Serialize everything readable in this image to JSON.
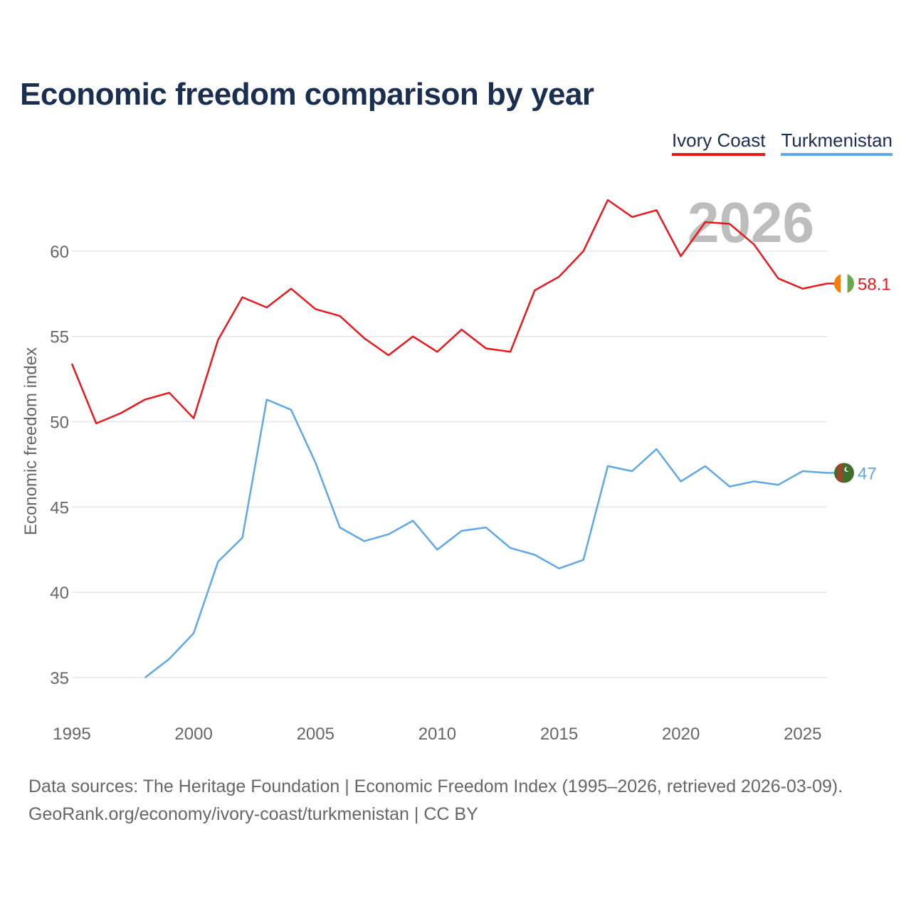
{
  "title": "Economic freedom comparison by year",
  "footer": {
    "sources": "Data sources: The Heritage Foundation | Economic Freedom Index (1995–2026, retrieved 2026-03-09).",
    "credit": "GeoRank.org/economy/ivory-coast/turkmenistan | CC BY"
  },
  "chart_data": {
    "type": "line",
    "title": "Economic freedom comparison by year",
    "ylabel": "Economic freedom index",
    "xlabel": "",
    "current_year": "2026",
    "xlim": [
      1995,
      2026
    ],
    "ylim": [
      33,
      64.5
    ],
    "x_ticks": [
      1995,
      2000,
      2005,
      2010,
      2015,
      2020,
      2025
    ],
    "y_ticks": [
      35,
      40,
      45,
      50,
      55,
      60
    ],
    "grid": true,
    "legend_position": "top-right",
    "series": [
      {
        "name": "Ivory Coast",
        "color": "#e8191c",
        "end_label": "58.1",
        "flag_icon": "ivory-coast-flag-icon",
        "x": [
          1995,
          1996,
          1997,
          1998,
          1999,
          2000,
          2001,
          2002,
          2003,
          2004,
          2005,
          2006,
          2007,
          2008,
          2009,
          2010,
          2011,
          2012,
          2013,
          2014,
          2015,
          2016,
          2017,
          2018,
          2019,
          2020,
          2021,
          2022,
          2023,
          2024,
          2025,
          2026
        ],
        "values": [
          53.4,
          49.9,
          50.5,
          51.3,
          51.7,
          50.2,
          54.8,
          57.3,
          56.7,
          57.8,
          56.6,
          56.2,
          54.9,
          53.9,
          55.0,
          54.1,
          55.4,
          54.3,
          54.1,
          57.7,
          58.5,
          60.0,
          63.0,
          62.0,
          62.4,
          59.7,
          61.7,
          61.6,
          60.4,
          58.4,
          57.8,
          58.1
        ]
      },
      {
        "name": "Turkmenistan",
        "color": "#5fa8e8",
        "end_label": "47",
        "flag_icon": "turkmenistan-flag-icon",
        "x": [
          1998,
          1999,
          2000,
          2001,
          2002,
          2003,
          2004,
          2005,
          2006,
          2007,
          2008,
          2009,
          2010,
          2011,
          2012,
          2013,
          2014,
          2015,
          2016,
          2017,
          2018,
          2019,
          2020,
          2021,
          2022,
          2023,
          2024,
          2025,
          2026
        ],
        "values": [
          35.0,
          36.1,
          37.6,
          41.8,
          43.2,
          51.3,
          50.7,
          47.6,
          43.8,
          43.0,
          43.4,
          44.2,
          42.5,
          43.6,
          43.8,
          42.6,
          42.2,
          41.4,
          41.9,
          47.4,
          47.1,
          48.4,
          46.5,
          47.4,
          46.2,
          46.5,
          46.3,
          47.1,
          47.0
        ]
      }
    ]
  }
}
